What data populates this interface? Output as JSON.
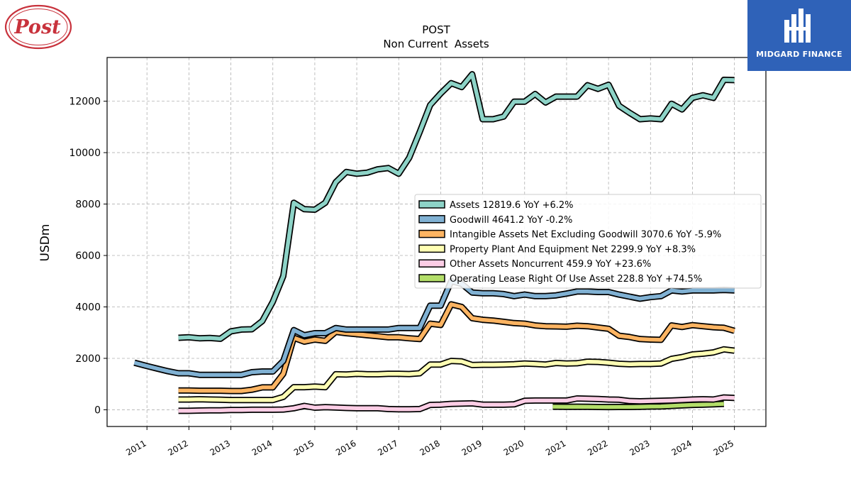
{
  "brand": {
    "left_logo_text": "Post",
    "right_logo_text": "MIDGARD FINANCE",
    "right_logo_color": "#2f62b8",
    "left_logo_color": "#c8323c"
  },
  "chart_data": {
    "type": "line",
    "title": "POST",
    "subtitle": "Non Current  Assets",
    "xlabel": "",
    "ylabel": "USDm",
    "xlim": [
      2010.05,
      2025.75
    ],
    "ylim": [
      -650,
      13700
    ],
    "grid": true,
    "legend_placement": "center-right",
    "x_ticks": [
      2011,
      2012,
      2013,
      2014,
      2015,
      2016,
      2017,
      2018,
      2019,
      2020,
      2021,
      2022,
      2023,
      2024,
      2025
    ],
    "x_tick_labels": [
      "2011",
      "2012",
      "2013",
      "2014",
      "2015",
      "2016",
      "2017",
      "2018",
      "2019",
      "2020",
      "2021",
      "2022",
      "2023",
      "2024",
      "2025"
    ],
    "y_ticks": [
      0,
      2000,
      4000,
      6000,
      8000,
      10000,
      12000
    ],
    "y_tick_labels": [
      "0",
      "2000",
      "4000",
      "6000",
      "8000",
      "10000",
      "12000"
    ],
    "series": [
      {
        "name": "Assets",
        "legend": "Assets  12819.6 YoY +6.2%",
        "color": "#8dd3c7",
        "x": [
          2011.75,
          2012.0,
          2012.25,
          2012.5,
          2012.75,
          2013.0,
          2013.25,
          2013.5,
          2013.75,
          2014.0,
          2014.25,
          2014.5,
          2014.75,
          2015.0,
          2015.25,
          2015.5,
          2015.75,
          2016.0,
          2016.25,
          2016.5,
          2016.75,
          2017.0,
          2017.25,
          2017.5,
          2017.75,
          2018.0,
          2018.25,
          2018.5,
          2018.75,
          2019.0,
          2019.25,
          2019.5,
          2019.75,
          2020.0,
          2020.25,
          2020.5,
          2020.75,
          2021.0,
          2021.25,
          2021.5,
          2021.75,
          2022.0,
          2022.25,
          2022.5,
          2022.75,
          2023.0,
          2023.25,
          2023.5,
          2023.75,
          2024.0,
          2024.25,
          2024.5,
          2024.75,
          2025.0
        ],
        "y": [
          2800,
          2820,
          2780,
          2790,
          2760,
          3050,
          3120,
          3130,
          3450,
          4200,
          5200,
          8050,
          7800,
          7780,
          8050,
          8850,
          9250,
          9180,
          9220,
          9350,
          9400,
          9180,
          9800,
          10800,
          11850,
          12300,
          12700,
          12550,
          13050,
          11300,
          11300,
          11400,
          11980,
          11980,
          12280,
          11950,
          12180,
          12180,
          12180,
          12620,
          12480,
          12640,
          11820,
          11550,
          11300,
          11330,
          11300,
          11900,
          11680,
          12130,
          12230,
          12130,
          12830,
          12820
        ]
      },
      {
        "name": "Goodwill",
        "legend": "Goodwill  4641.2 YoY -0.2%",
        "color": "#80b1d3",
        "x": [
          2010.7,
          2011.0,
          2011.25,
          2011.5,
          2011.75,
          2012.0,
          2012.25,
          2012.5,
          2012.75,
          2013.0,
          2013.25,
          2013.5,
          2013.75,
          2014.0,
          2014.25,
          2014.5,
          2014.75,
          2015.0,
          2015.25,
          2015.5,
          2015.75,
          2016.0,
          2016.25,
          2016.5,
          2016.75,
          2017.0,
          2017.25,
          2017.5,
          2017.75,
          2018.0,
          2018.25,
          2018.5,
          2018.75,
          2019.0,
          2019.25,
          2019.5,
          2019.75,
          2020.0,
          2020.25,
          2020.5,
          2020.75,
          2021.0,
          2021.25,
          2021.5,
          2021.75,
          2022.0,
          2022.25,
          2022.5,
          2022.75,
          2023.0,
          2023.25,
          2023.5,
          2023.75,
          2024.0,
          2024.25,
          2024.5,
          2024.75,
          2025.0
        ],
        "y": [
          1830,
          1700,
          1600,
          1500,
          1420,
          1420,
          1360,
          1360,
          1360,
          1360,
          1360,
          1460,
          1490,
          1490,
          1900,
          3100,
          2900,
          2980,
          2980,
          3180,
          3120,
          3120,
          3120,
          3120,
          3120,
          3180,
          3180,
          3180,
          4050,
          4050,
          5000,
          4900,
          4560,
          4530,
          4530,
          4500,
          4420,
          4480,
          4420,
          4420,
          4450,
          4520,
          4600,
          4600,
          4580,
          4580,
          4480,
          4400,
          4320,
          4380,
          4420,
          4640,
          4600,
          4640,
          4640,
          4640,
          4660,
          4641
        ]
      },
      {
        "name": "Intangible Assets Net Excluding Goodwill",
        "legend": "Intangible Assets Net Excluding Goodwill  3070.6 YoY -5.9%",
        "color": "#fdb462",
        "x": [
          2011.75,
          2012.0,
          2012.25,
          2012.5,
          2012.75,
          2013.0,
          2013.25,
          2013.5,
          2013.75,
          2014.0,
          2014.25,
          2014.5,
          2014.75,
          2015.0,
          2015.25,
          2015.5,
          2015.75,
          2016.0,
          2016.25,
          2016.5,
          2016.75,
          2017.0,
          2017.25,
          2017.5,
          2017.75,
          2018.0,
          2018.25,
          2018.5,
          2018.75,
          2019.0,
          2019.25,
          2019.5,
          2019.75,
          2020.0,
          2020.25,
          2020.5,
          2020.75,
          2021.0,
          2021.25,
          2021.5,
          2021.75,
          2022.0,
          2022.25,
          2022.5,
          2022.75,
          2023.0,
          2023.25,
          2023.5,
          2023.75,
          2024.0,
          2024.25,
          2024.5,
          2024.75,
          2025.0
        ],
        "y": [
          750,
          750,
          740,
          740,
          740,
          730,
          730,
          780,
          870,
          870,
          1400,
          2800,
          2650,
          2730,
          2680,
          3030,
          2980,
          2940,
          2900,
          2860,
          2820,
          2820,
          2780,
          2750,
          3350,
          3300,
          4100,
          4000,
          3560,
          3500,
          3470,
          3420,
          3370,
          3350,
          3280,
          3250,
          3240,
          3230,
          3270,
          3250,
          3200,
          3150,
          2880,
          2830,
          2750,
          2730,
          2720,
          3280,
          3220,
          3290,
          3250,
          3210,
          3190,
          3071
        ]
      },
      {
        "name": "Property Plant And Equipment Net",
        "legend": "Property Plant And Equipment Net  2299.9 YoY +8.3%",
        "color": "#ffffb3",
        "x": [
          2011.75,
          2012.0,
          2012.25,
          2012.5,
          2012.75,
          2013.0,
          2013.25,
          2013.5,
          2013.75,
          2014.0,
          2014.25,
          2014.5,
          2014.75,
          2015.0,
          2015.25,
          2015.5,
          2015.75,
          2016.0,
          2016.25,
          2016.5,
          2016.75,
          2017.0,
          2017.25,
          2017.5,
          2017.75,
          2018.0,
          2018.25,
          2018.5,
          2018.75,
          2019.0,
          2019.25,
          2019.5,
          2019.75,
          2020.0,
          2020.25,
          2020.5,
          2020.75,
          2021.0,
          2021.25,
          2021.5,
          2021.75,
          2022.0,
          2022.25,
          2022.5,
          2022.75,
          2023.0,
          2023.25,
          2023.5,
          2023.75,
          2024.0,
          2024.25,
          2024.5,
          2024.75,
          2025.0
        ],
        "y": [
          400,
          400,
          410,
          400,
          390,
          380,
          380,
          380,
          380,
          380,
          500,
          880,
          880,
          900,
          880,
          1380,
          1370,
          1400,
          1380,
          1380,
          1400,
          1400,
          1390,
          1420,
          1760,
          1760,
          1900,
          1880,
          1740,
          1750,
          1750,
          1760,
          1770,
          1800,
          1780,
          1760,
          1820,
          1800,
          1810,
          1870,
          1860,
          1830,
          1790,
          1770,
          1780,
          1780,
          1800,
          1980,
          2050,
          2150,
          2180,
          2230,
          2350,
          2300
        ]
      },
      {
        "name": "Other Assets Noncurrent",
        "legend": "Other Assets Noncurrent  459.9 YoY +23.6%",
        "color": "#fccde5",
        "x": [
          2011.75,
          2012.0,
          2012.25,
          2012.5,
          2012.75,
          2013.0,
          2013.25,
          2013.5,
          2013.75,
          2014.0,
          2014.25,
          2014.5,
          2014.75,
          2015.0,
          2015.25,
          2015.5,
          2015.75,
          2016.0,
          2016.25,
          2016.5,
          2016.75,
          2017.0,
          2017.25,
          2017.5,
          2017.75,
          2018.0,
          2018.25,
          2018.5,
          2018.75,
          2019.0,
          2019.25,
          2019.5,
          2019.75,
          2020.0,
          2020.25,
          2020.5,
          2020.75,
          2021.0,
          2021.25,
          2021.5,
          2021.75,
          2022.0,
          2022.25,
          2022.5,
          2022.75,
          2023.0,
          2023.25,
          2023.5,
          2023.75,
          2024.0,
          2024.25,
          2024.5,
          2024.75,
          2025.0
        ],
        "y": [
          -40,
          -40,
          -30,
          -20,
          -20,
          -10,
          -10,
          0,
          0,
          0,
          10,
          60,
          150,
          80,
          100,
          90,
          70,
          60,
          60,
          60,
          30,
          20,
          20,
          30,
          190,
          200,
          230,
          240,
          250,
          200,
          200,
          200,
          210,
          350,
          360,
          360,
          360,
          360,
          440,
          430,
          420,
          400,
          390,
          340,
          330,
          340,
          350,
          360,
          380,
          400,
          410,
          400,
          480,
          460
        ]
      },
      {
        "name": "Operating Lease Right Of Use Asset",
        "legend": "Operating Lease Right Of Use Asset  228.8 YoY +74.5%",
        "color": "#b3de69",
        "x": [
          2020.67,
          2020.75,
          2021.0,
          2021.25,
          2021.5,
          2021.75,
          2022.0,
          2022.25,
          2022.5,
          2022.75,
          2023.0,
          2023.25,
          2023.5,
          2023.75,
          2024.0,
          2024.25,
          2024.5,
          2024.75
        ],
        "y": [
          120,
          120,
          115,
          120,
          115,
          110,
          105,
          110,
          110,
          115,
          125,
          130,
          150,
          170,
          190,
          200,
          215,
          229
        ]
      }
    ]
  }
}
